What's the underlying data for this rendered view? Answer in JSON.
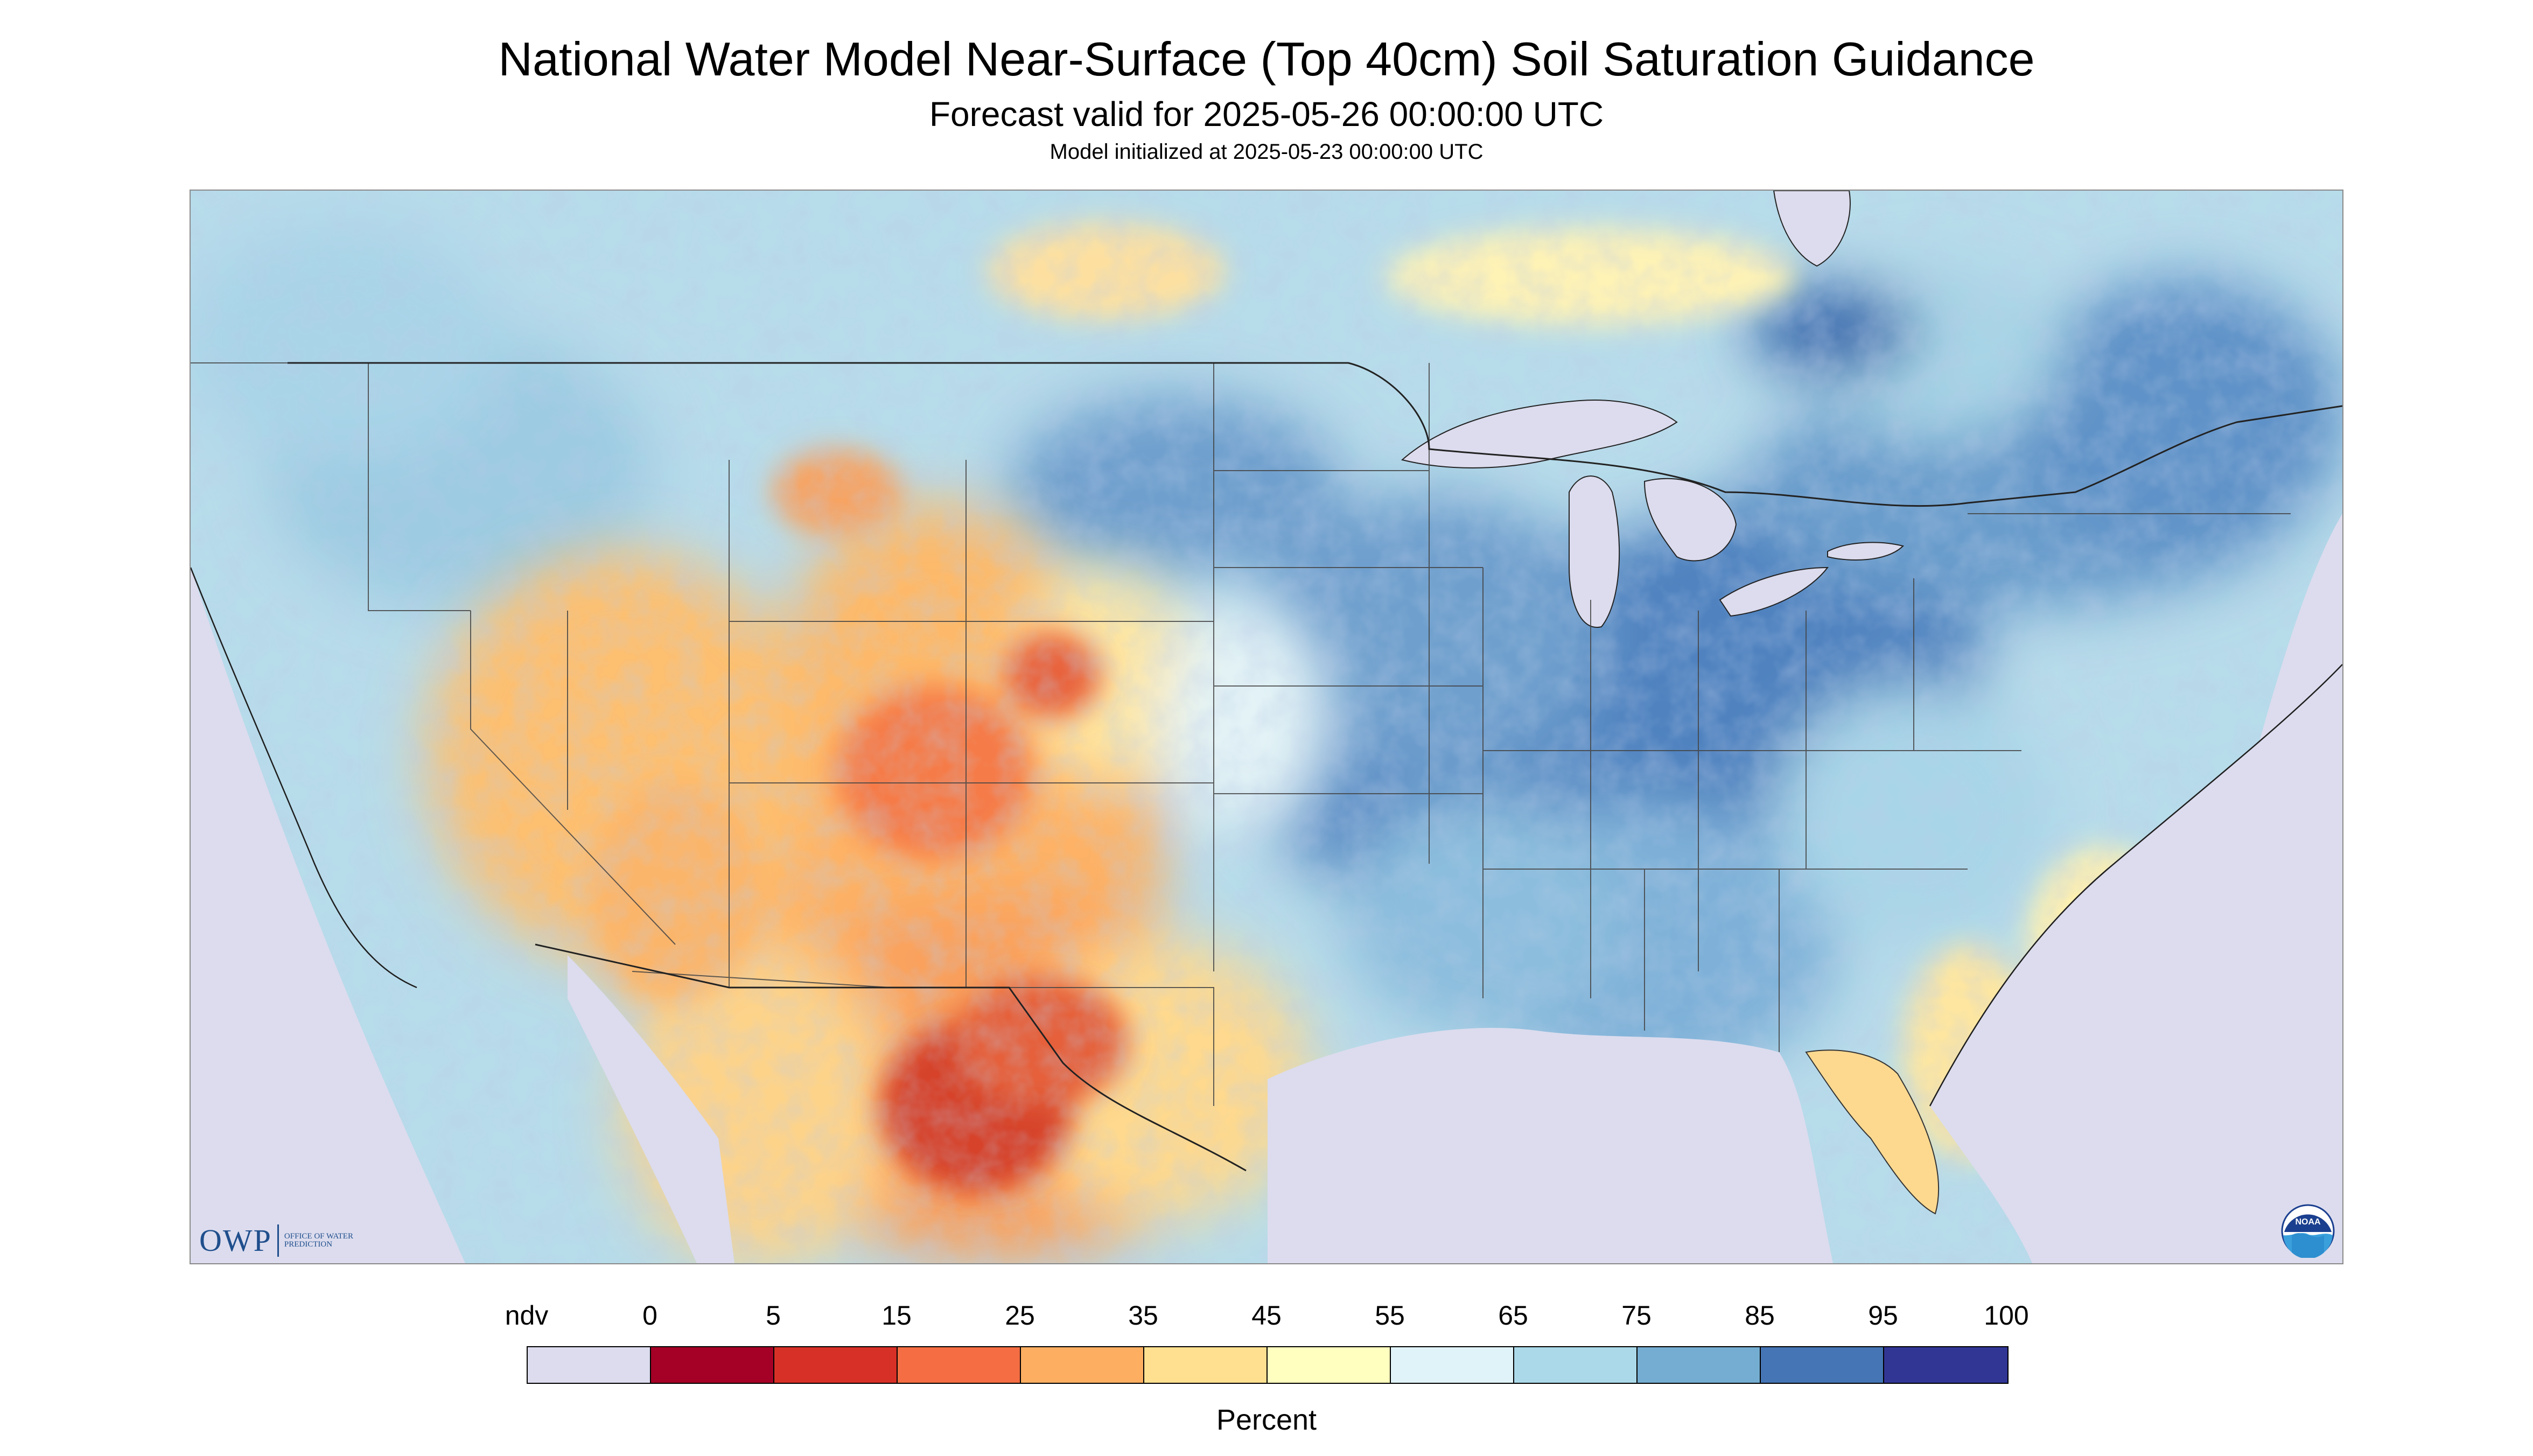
{
  "header": {
    "title": "National Water Model Near-Surface (Top 40cm) Soil Saturation Guidance",
    "subtitle": "Forecast valid for 2025-05-26 00:00:00 UTC",
    "init": "Model initialized at 2025-05-23 00:00:00 UTC"
  },
  "map": {
    "background_color": "#dcdcee",
    "state_line_color": "#444444"
  },
  "logos": {
    "owp_mark": "OWP",
    "owp_full": "Office of Water Prediction",
    "noaa": "NOAA"
  },
  "legend": {
    "title": "Percent",
    "labels": [
      "ndv",
      "0",
      "5",
      "15",
      "25",
      "35",
      "45",
      "55",
      "65",
      "75",
      "85",
      "95",
      "100"
    ],
    "colors": [
      "#dcdcee",
      "#a50026",
      "#d73027",
      "#f46d43",
      "#fdae61",
      "#fee090",
      "#ffffbf",
      "#e0f3f8",
      "#abd9e9",
      "#74add1",
      "#4575b4",
      "#313695"
    ]
  }
}
